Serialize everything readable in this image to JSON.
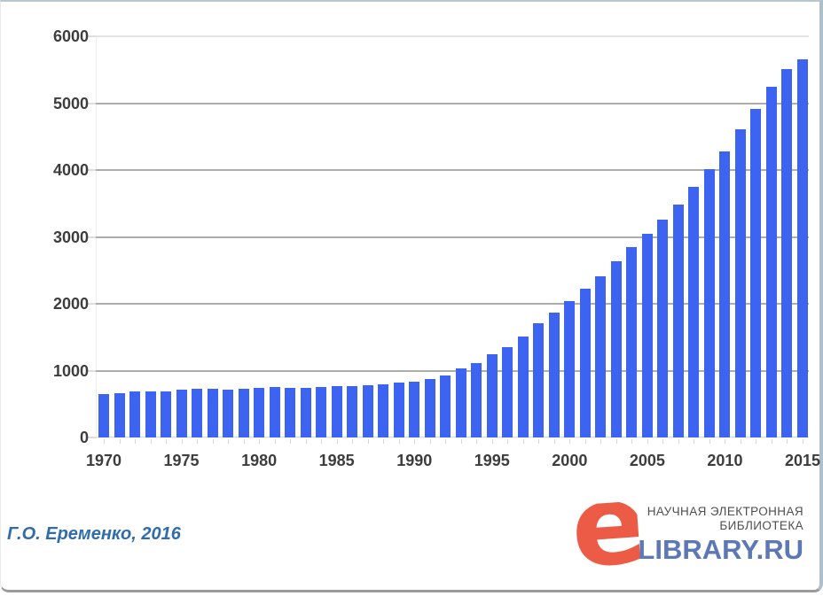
{
  "page": {
    "background": "#ffffff",
    "border_top_color": "#b9c6d0",
    "border_right_color": "#aebfca",
    "border_bottom_color": "#9b9b9b"
  },
  "attribution": {
    "text": "Г.О. Еременко, 2016",
    "color": "#2f6cac"
  },
  "logo": {
    "e_glyph": "e",
    "e_color": "#eb5b45",
    "line1": "НАУЧНАЯ ЭЛЕКТРОННАЯ",
    "line2": "БИБЛИОТЕКА",
    "wordmark": "LIBRARY.RU",
    "wordmark_color": "#5c78b5",
    "text_color": "#4e4e4e"
  },
  "chart_data": {
    "type": "bar",
    "categories": [
      1970,
      1971,
      1972,
      1973,
      1974,
      1975,
      1976,
      1977,
      1978,
      1979,
      1980,
      1981,
      1982,
      1983,
      1984,
      1985,
      1986,
      1987,
      1988,
      1989,
      1990,
      1991,
      1992,
      1993,
      1994,
      1995,
      1996,
      1997,
      1998,
      1999,
      2000,
      2001,
      2002,
      2003,
      2004,
      2005,
      2006,
      2007,
      2008,
      2009,
      2010,
      2011,
      2012,
      2013,
      2014,
      2015
    ],
    "values": [
      645,
      660,
      685,
      695,
      685,
      715,
      725,
      730,
      720,
      730,
      740,
      755,
      748,
      748,
      760,
      765,
      772,
      785,
      795,
      815,
      840,
      870,
      925,
      1030,
      1110,
      1240,
      1350,
      1515,
      1710,
      1870,
      2040,
      2230,
      2415,
      2635,
      2845,
      3045,
      3255,
      3480,
      3745,
      4015,
      4280,
      4610,
      4920,
      5250,
      5510,
      5650
    ],
    "ylim": [
      0,
      6000
    ],
    "ytick_step": 1000,
    "ytick_labels": [
      "0",
      "1000",
      "2000",
      "3000",
      "4000",
      "5000",
      "6000"
    ],
    "xtick_years": [
      1970,
      1975,
      1980,
      1985,
      1990,
      1995,
      2000,
      2005,
      2010,
      2015
    ],
    "grid": true,
    "legend": "none",
    "bar_color": "#3d64f0",
    "gridline_color": "#adadad",
    "top_gridline_color": "#e3e3e3",
    "zero_line_color": "#d8d8d8",
    "axis_label_color": "#3d3d3d"
  }
}
